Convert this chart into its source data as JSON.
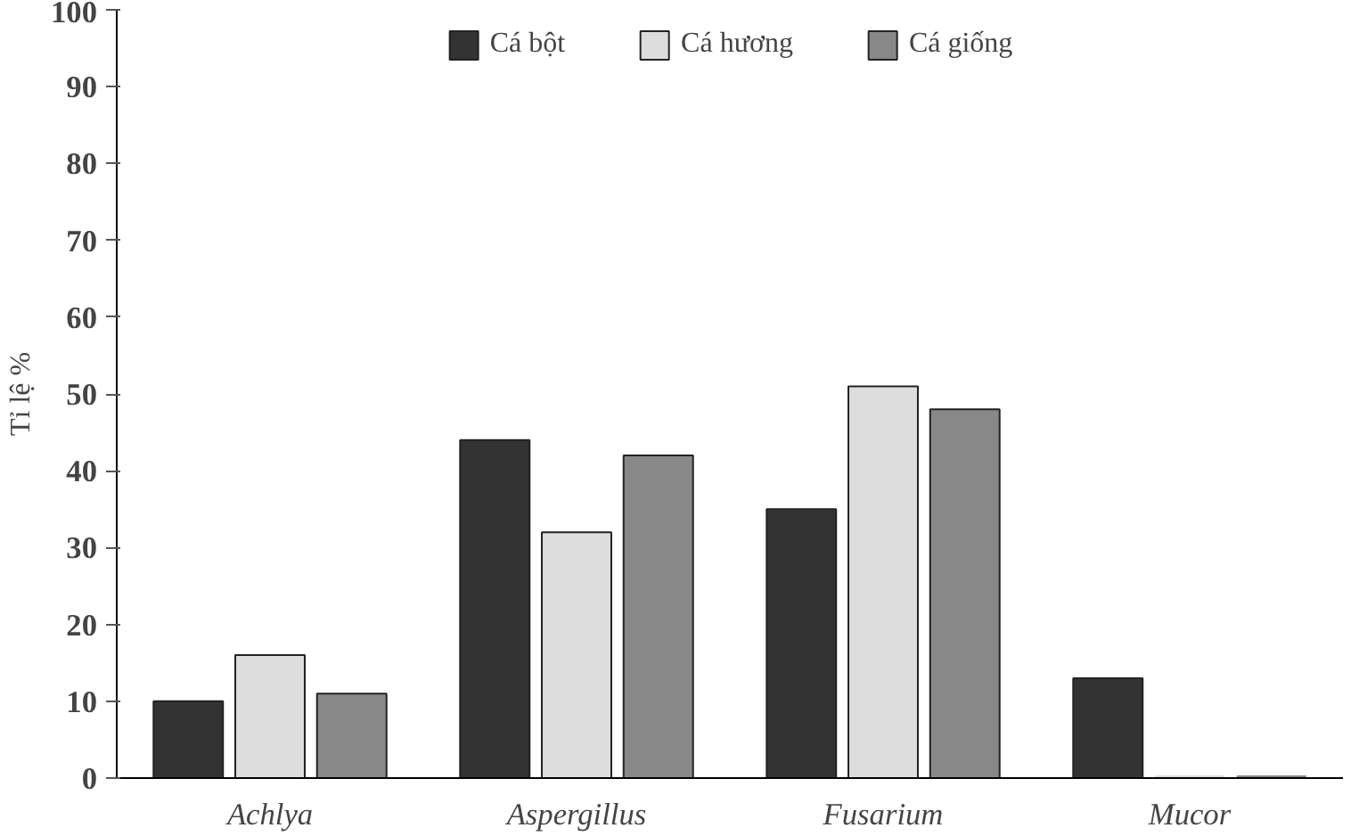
{
  "chart_data": {
    "type": "bar",
    "ylabel": "Tỉ lệ %",
    "categories": [
      "Achlya",
      "Aspergillus",
      "Fusarium",
      "Mucor"
    ],
    "series": [
      {
        "name": "Cá bột",
        "color": "#333333",
        "values": [
          10,
          44,
          35,
          13
        ]
      },
      {
        "name": "Cá hương",
        "color": "#dddddd",
        "values": [
          16,
          32,
          51,
          0
        ]
      },
      {
        "name": "Cá giống",
        "color": "#888888",
        "values": [
          11,
          42,
          48,
          0
        ]
      }
    ],
    "ylim": [
      0,
      100
    ],
    "yticks": [
      0,
      10,
      20,
      30,
      40,
      50,
      60,
      70,
      80,
      90,
      100
    ],
    "grid": false,
    "legend": "top"
  }
}
